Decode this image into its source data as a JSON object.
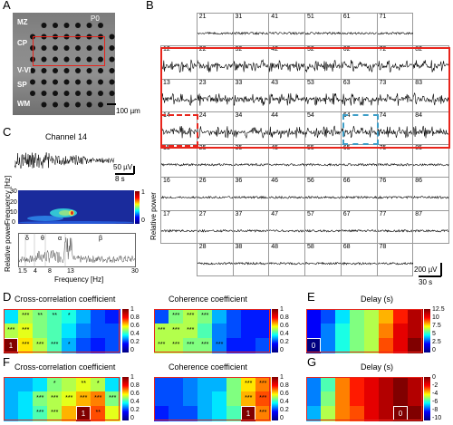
{
  "panels": {
    "A": "A",
    "B": "B",
    "C": "C",
    "D": "D",
    "E": "E",
    "F": "F",
    "G": "G"
  },
  "panelA": {
    "age": "P0",
    "layers": [
      "MZ",
      "CP",
      "V-VI",
      "SP",
      "WM"
    ],
    "scale": "100 µm"
  },
  "panelB": {
    "channels": [
      [
        "",
        "21",
        "31",
        "41",
        "51",
        "61",
        "71",
        ""
      ],
      [
        "12",
        "22",
        "32",
        "42",
        "52",
        "62",
        "72",
        "82"
      ],
      [
        "13",
        "23",
        "33",
        "43",
        "53",
        "63",
        "73",
        "83"
      ],
      [
        "14",
        "24",
        "34",
        "44",
        "54",
        "64",
        "74",
        "84"
      ],
      [
        "15",
        "25",
        "35",
        "45",
        "55",
        "65",
        "75",
        "85"
      ],
      [
        "16",
        "26",
        "36",
        "46",
        "56",
        "66",
        "76",
        "86"
      ],
      [
        "17",
        "27",
        "37",
        "47",
        "57",
        "67",
        "77",
        "87"
      ],
      [
        "",
        "28",
        "38",
        "48",
        "58",
        "68",
        "78",
        ""
      ]
    ],
    "scale_v": "200 µV",
    "scale_t": "30 s",
    "ylabel": "Relative power"
  },
  "panelC": {
    "title": "Channel 14",
    "scale_v": "50 µV",
    "scale_t": "8 s",
    "spec_ylabel": "Frequency [Hz]",
    "spec_yticks": [
      "30",
      "20",
      "10",
      "0"
    ],
    "cbar_ticks": [
      "1",
      "0"
    ],
    "power_ylabel": "Relative power",
    "bands": [
      "δ",
      "θ",
      "α",
      "β"
    ],
    "xticks": [
      "1.5",
      "4",
      "8",
      "13",
      "30"
    ],
    "xlabel": "Frequency [Hz]"
  },
  "panelD": {
    "title1": "Cross-correlation coefficient",
    "title2": "Coherence coefficient",
    "ticks1": [
      "1",
      "0.8",
      "0.6",
      "0.4",
      "0.2",
      "0"
    ],
    "ticks2": [
      "1",
      "0.8",
      "0.6",
      "0.4",
      "0.2",
      "0"
    ],
    "ref1": "1"
  },
  "panelE": {
    "title": "Delay (s)",
    "ticks": [
      "12.5",
      "10",
      "7.5",
      "5",
      "2.5",
      "0"
    ],
    "ref": "0"
  },
  "panelF": {
    "title1": "Cross-correlation coefficient",
    "title2": "Coherence coefficient",
    "ticks1": [
      "1",
      "0.8",
      "0.6",
      "0.4",
      "0.2",
      "0"
    ],
    "ticks2": [
      "1",
      "0.8",
      "0.6",
      "0.4",
      "0.2",
      "0"
    ],
    "ref1": "1",
    "ref2": "1"
  },
  "panelG": {
    "title": "Delay (s)",
    "ticks": [
      "0",
      "-2",
      "-4",
      "-6",
      "-8",
      "-10"
    ],
    "ref": "0"
  },
  "colors": {
    "red": "#e8251c",
    "blue": "#3c9dc7"
  }
}
